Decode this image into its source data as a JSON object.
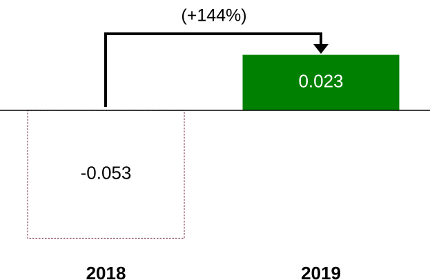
{
  "chart_data": {
    "type": "bar",
    "categories": [
      "2018",
      "2019"
    ],
    "values": [
      -0.053,
      0.023
    ],
    "colors": [
      "none",
      "#008000"
    ],
    "annotation": "(+144%)"
  }
}
